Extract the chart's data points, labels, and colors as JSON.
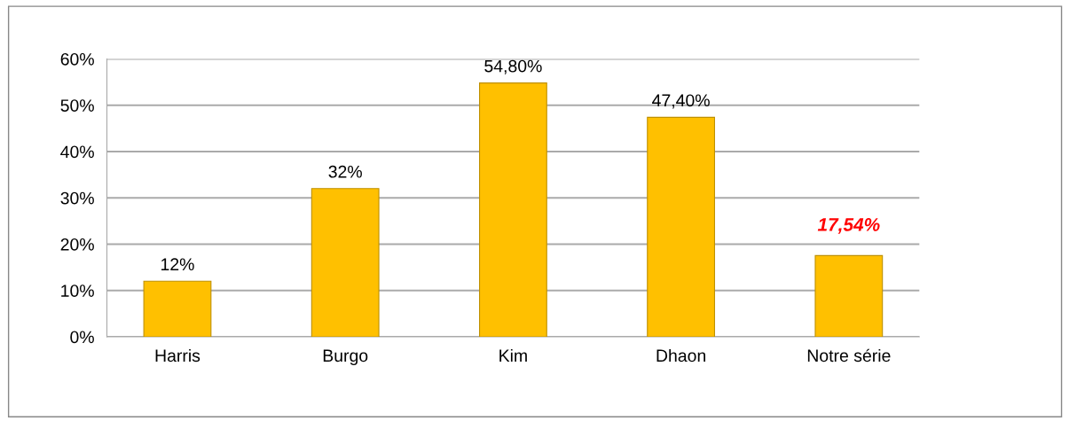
{
  "chart_data": {
    "type": "bar",
    "categories": [
      "Harris",
      "Burgo",
      "Kim",
      "Dhaon",
      "Notre série"
    ],
    "values": [
      12,
      32,
      54.8,
      47.4,
      17.54
    ],
    "color": "#ffc000",
    "value_labels": [
      "12%",
      "32%",
      "54,80%",
      "47,40%",
      null
    ],
    "annotations": [
      {
        "text": "17,54%",
        "x": "Notre série",
        "y": 17.54
      }
    ],
    "ylim": [
      0,
      60
    ],
    "yticks": [
      {
        "value": 0,
        "label": "0%"
      },
      {
        "value": 10,
        "label": "10%"
      },
      {
        "value": 20,
        "label": "20%"
      },
      {
        "value": 30,
        "label": "30%"
      },
      {
        "value": 40,
        "label": "40%"
      },
      {
        "value": 50,
        "label": "50%"
      },
      {
        "value": 60,
        "label": "60%"
      }
    ],
    "grid": "y",
    "legend": false
  }
}
